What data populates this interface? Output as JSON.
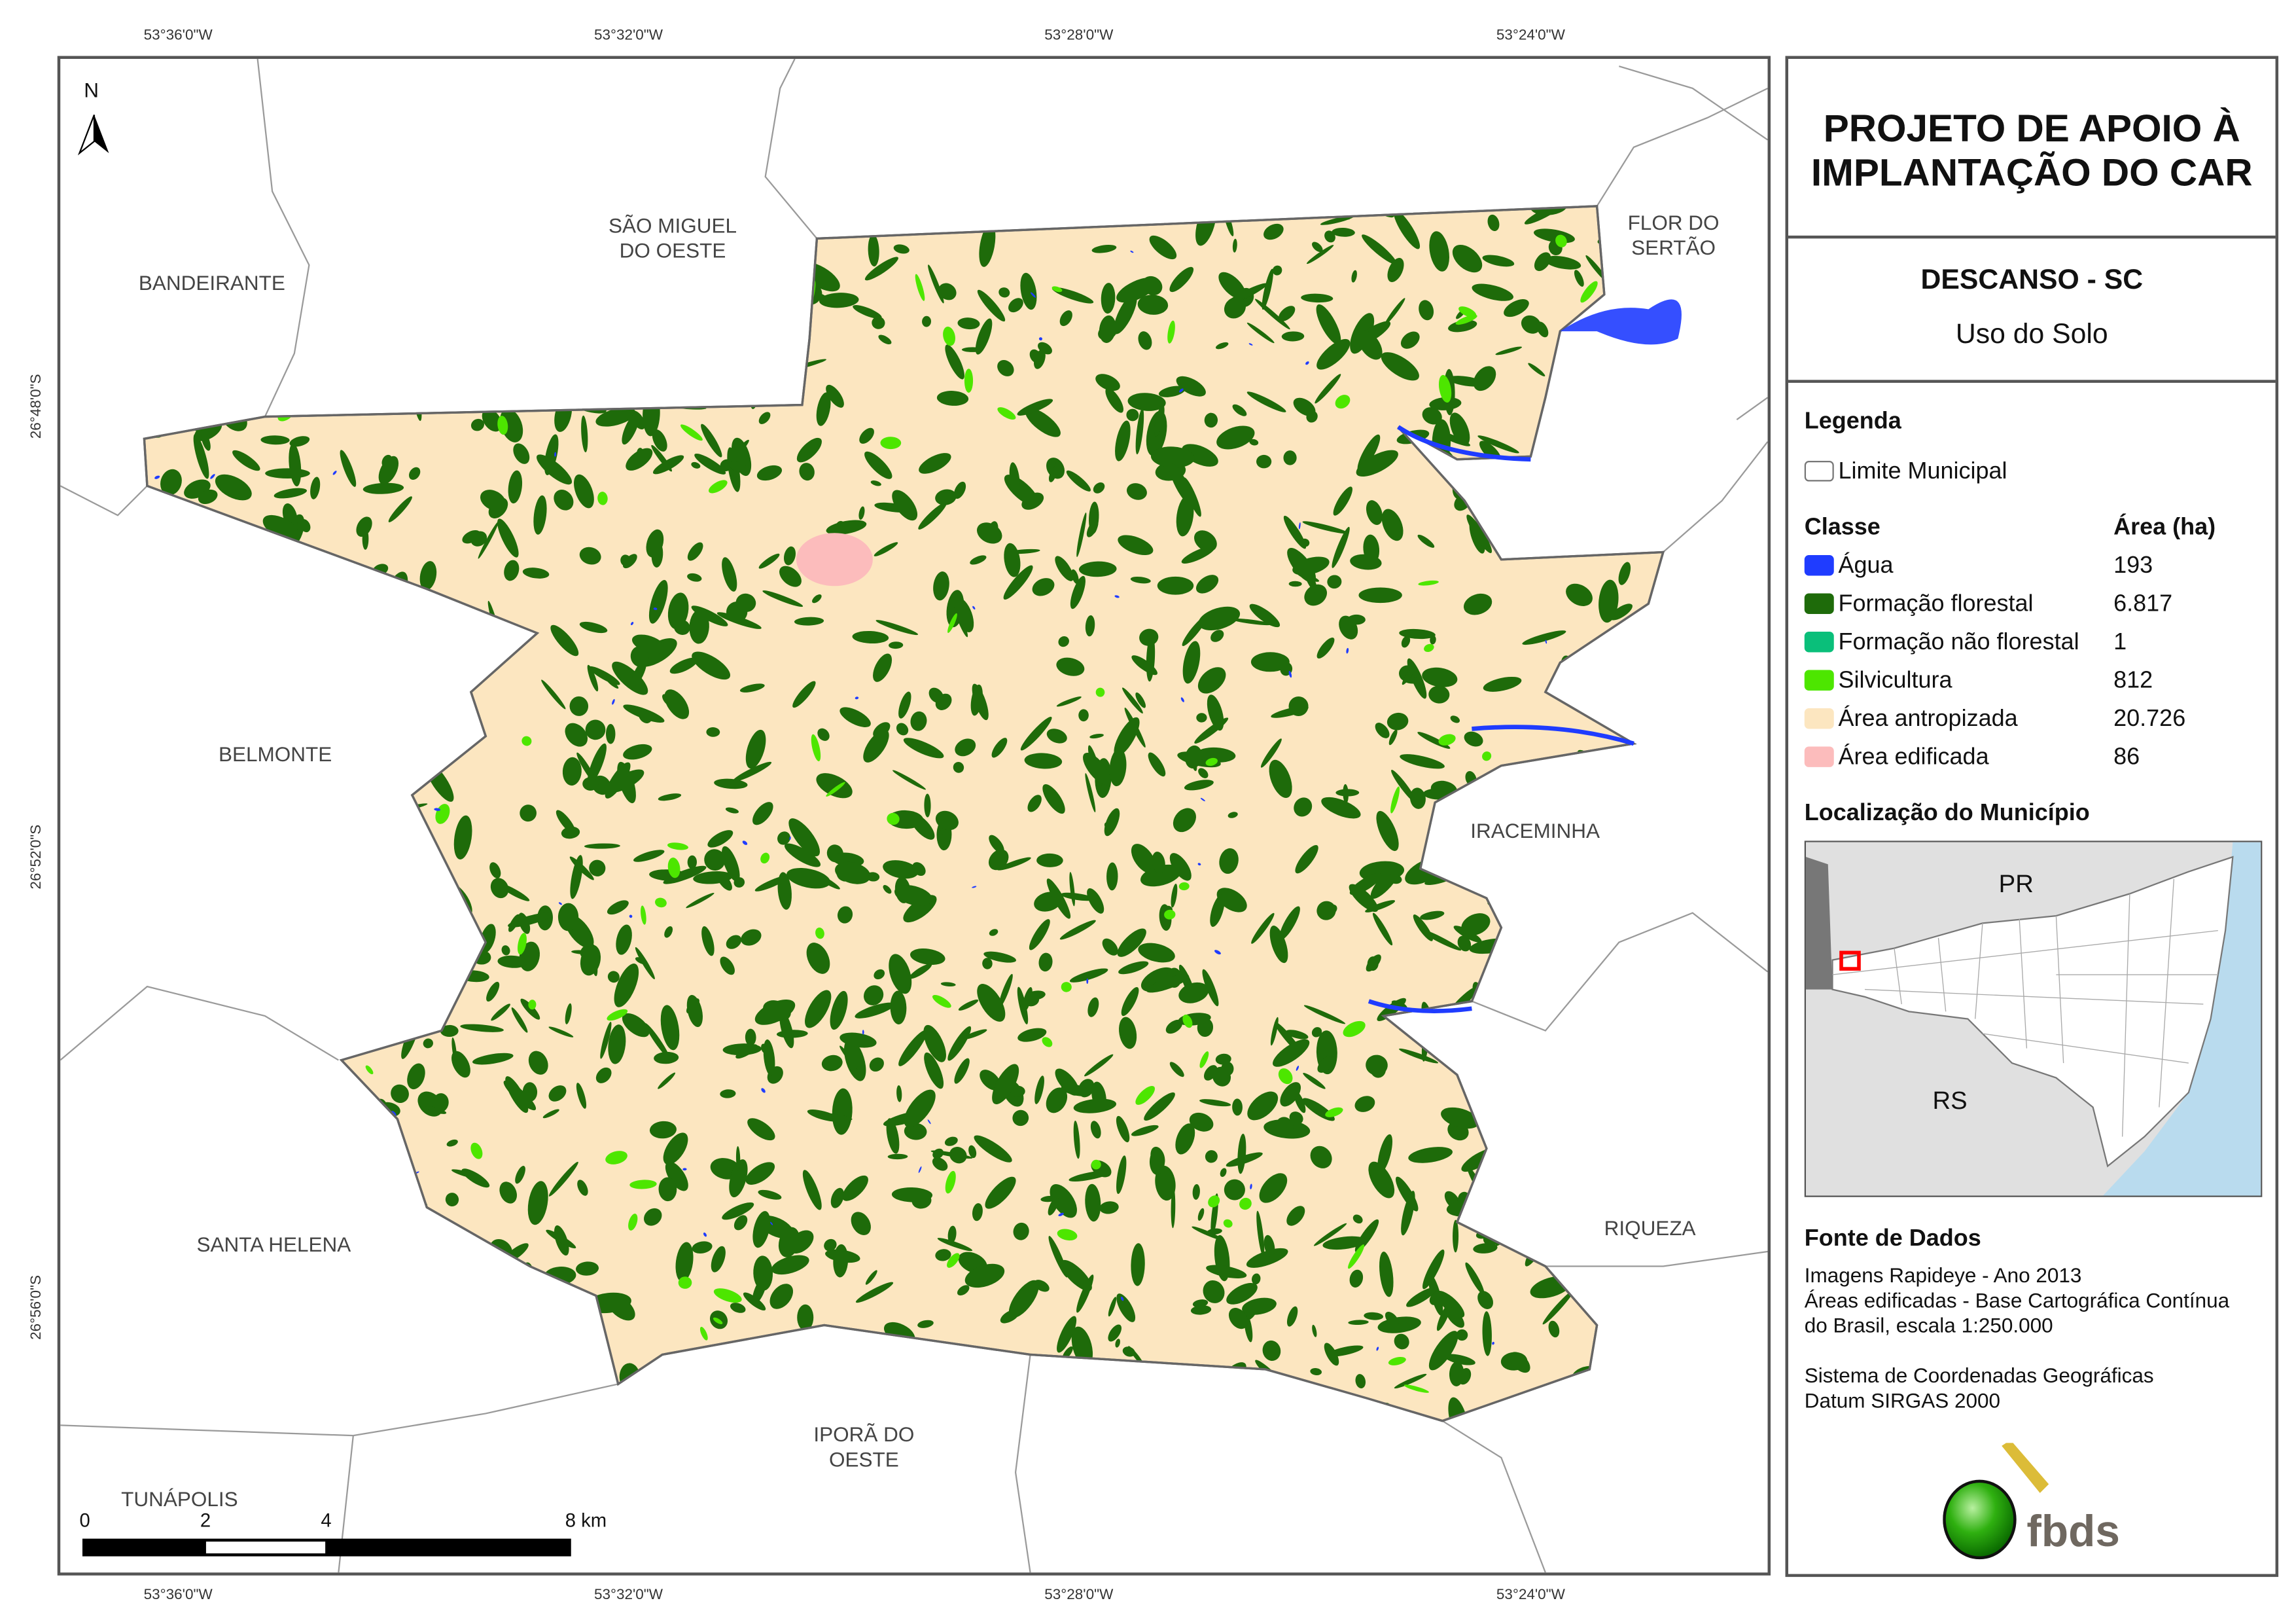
{
  "graticule": {
    "top": [
      "53°36'0\"W",
      "53°32'0\"W",
      "53°28'0\"W",
      "53°24'0\"W"
    ],
    "bottom": [
      "53°36'0\"W",
      "53°32'0\"W",
      "53°28'0\"W",
      "53°24'0\"W"
    ],
    "left": [
      "26°48'0\"S",
      "26°52'0\"S",
      "26°56'0\"S"
    ]
  },
  "map": {
    "north_label": "N",
    "municipality_labels": [
      {
        "name": "BANDEIRANTE"
      },
      {
        "name": "SÃO MIGUEL\nDO OESTE"
      },
      {
        "name": "FLOR DO\nSERTÃO"
      },
      {
        "name": "BELMONTE"
      },
      {
        "name": "IRACEMINHA"
      },
      {
        "name": "SANTA HELENA"
      },
      {
        "name": "RIQUEZA"
      },
      {
        "name": "IPORÃ DO\nOESTE"
      },
      {
        "name": "TUNÁPOLIS"
      }
    ],
    "scale_bar": {
      "labels": [
        "0",
        "2",
        "4",
        "8 km"
      ]
    }
  },
  "panel": {
    "title": "PROJETO DE APOIO À IMPLANTAÇÃO DO CAR",
    "subtitle": "DESCANSO - SC",
    "theme": "Uso do Solo",
    "legend_heading": "Legenda",
    "boundary_label": "Limite Municipal",
    "class_heading": "Classe",
    "area_heading": "Área (ha)",
    "classes": [
      {
        "label": "Água",
        "area": "193",
        "color": "#1f3cff"
      },
      {
        "label": "Formação florestal",
        "area": "6.817",
        "color": "#1e6b0a"
      },
      {
        "label": "Formação não florestal",
        "area": "1",
        "color": "#0abf7a"
      },
      {
        "label": "Silvicultura",
        "area": "812",
        "color": "#4de600"
      },
      {
        "label": "Área antropizada",
        "area": "20.726",
        "color": "#fce6c0"
      },
      {
        "label": "Área edificada",
        "area": "86",
        "color": "#fcbcbc"
      }
    ],
    "locator_heading": "Localização do Município",
    "locator_labels": [
      "PR",
      "RS"
    ],
    "source_heading": "Fonte de Dados",
    "source_lines": [
      "Imagens Rapideye - Ano 2013",
      "Áreas edificadas - Base Cartográfica Contínua",
      "do Brasil, escala 1:250.000"
    ],
    "crs_lines": [
      "Sistema de Coordenadas Geográficas",
      "Datum SIRGAS 2000"
    ],
    "logo_text": "fbds"
  }
}
